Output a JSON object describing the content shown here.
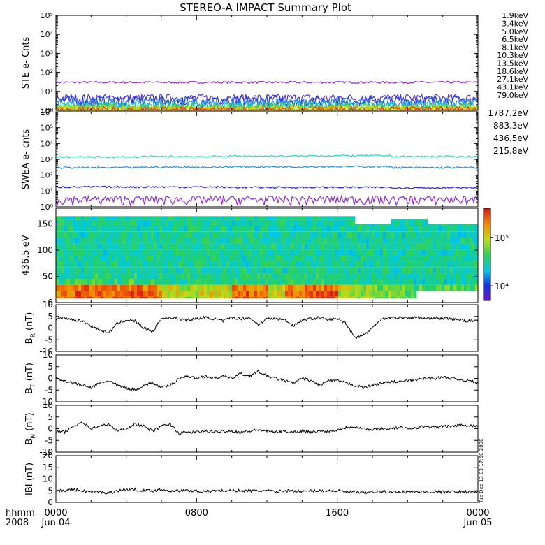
{
  "title": "STEREO-A IMPACT Summary Plot",
  "footer": {
    "left_top": "hhmm",
    "left_bottom": "2008"
  },
  "x_axis": {
    "ticks": [
      {
        "t": 0,
        "top": "0000",
        "bottom": "Jun 04"
      },
      {
        "t": 8,
        "top": "0800",
        "bottom": ""
      },
      {
        "t": 16,
        "top": "1600",
        "bottom": ""
      },
      {
        "t": 24,
        "top": "0000",
        "bottom": "Jun 05"
      }
    ],
    "range_hours": [
      0,
      24
    ]
  },
  "side_stamp": "Tue Dec 13 03:17:50 2008",
  "colors": {
    "ste": [
      "#8a2be2",
      "#5533dd",
      "#1f3fe0",
      "#1e90e6",
      "#16c8c8",
      "#22cc55",
      "#66dd22",
      "#bbdd11",
      "#eedd00",
      "#ee9900",
      "#dd3322"
    ],
    "swea": [
      "#8a2be2",
      "#2020dd",
      "#1e90e6",
      "#22ddbb"
    ]
  },
  "chart_data": [
    {
      "panel": "STE",
      "type": "line",
      "ylabel": "STE e- Cnts",
      "scale": "log",
      "ylim": [
        1,
        100000
      ],
      "tick_labels": [
        "10⁰",
        "10¹",
        "10²",
        "10³",
        "10⁴",
        "10⁵"
      ],
      "series": [
        {
          "name": "1.9keV",
          "values": [
            30,
            30,
            30,
            30,
            30,
            30
          ]
        },
        {
          "name": "3.4keV",
          "values": [
            4.5,
            4.5,
            4.5,
            4.5,
            4.5,
            4.5
          ]
        },
        {
          "name": "5.0keV",
          "values": [
            3.5,
            3.5,
            3.5,
            3.5,
            3.5,
            3.5
          ]
        },
        {
          "name": "6.5keV",
          "values": [
            2.5,
            2.5,
            2.5,
            2.5,
            2.5,
            2.5
          ]
        },
        {
          "name": "8.1keV",
          "values": [
            1.8,
            1.8,
            1.8,
            1.8,
            1.8,
            1.8
          ]
        },
        {
          "name": "10.3keV",
          "values": [
            1.5,
            1.5,
            1.5,
            1.5,
            1.5,
            1.5
          ]
        },
        {
          "name": "13.5keV",
          "values": [
            1.3,
            1.3,
            1.3,
            1.3,
            1.3,
            1.3
          ]
        },
        {
          "name": "18.6keV",
          "values": [
            1.2,
            1.2,
            1.2,
            1.2,
            1.2,
            1.2
          ]
        },
        {
          "name": "27.1keV",
          "values": [
            1.1,
            1.1,
            1.1,
            1.1,
            1.1,
            1.1
          ]
        },
        {
          "name": "43.1keV",
          "values": [
            1.05,
            1.05,
            1.05,
            1.05,
            1.05,
            1.05
          ]
        },
        {
          "name": "79.0keV",
          "values": [
            1.0,
            1.0,
            1.0,
            1.0,
            1.0,
            1.0
          ]
        }
      ]
    },
    {
      "panel": "SWEA",
      "type": "line",
      "ylabel": "SWEA e- cnts",
      "scale": "log",
      "ylim": [
        1,
        1000000
      ],
      "tick_labels": [
        "10⁰",
        "10¹",
        "10²",
        "10³",
        "10⁴",
        "10⁵",
        "10⁶"
      ],
      "series": [
        {
          "name": "1787.2eV",
          "values": [
            3,
            3,
            3,
            3,
            3,
            3
          ]
        },
        {
          "name": "883.3eV",
          "values": [
            18,
            18,
            17,
            17,
            16,
            16
          ]
        },
        {
          "name": "436.5eV",
          "values": [
            300,
            320,
            340,
            350,
            300,
            280
          ]
        },
        {
          "name": "215.8eV",
          "values": [
            1400,
            1500,
            1600,
            1700,
            1500,
            1300
          ]
        }
      ]
    },
    {
      "panel": "PAD",
      "type": "heatmap",
      "ylabel": "436.5 eV",
      "ylim": [
        0,
        180
      ],
      "y_ticks": [
        0,
        50,
        100,
        150
      ],
      "colorbar": {
        "range": [
          5000,
          400000
        ],
        "tick_labels": [
          "10⁴",
          "10⁵"
        ],
        "tick_values": [
          10000,
          100000
        ]
      },
      "notes_values": "pitch-angle spectrogram; high counts (red/orange) concentrated at low pitch angles",
      "low_angle_flux_by_hour": [
        0.85,
        0.9,
        0.88,
        0.86,
        0.9,
        0.85,
        0.6,
        0.55,
        0.62,
        0.6,
        0.9,
        0.88,
        0.6,
        0.85,
        0.9,
        0.88,
        0.6,
        0.55,
        0.5,
        0.45,
        0.4,
        0.4,
        0.4,
        0.4
      ]
    },
    {
      "panel": "BR",
      "type": "line",
      "ylabel": "B_R (nT)",
      "ylim": [
        -10,
        10
      ],
      "y_ticks": [
        -10,
        -5,
        0,
        5,
        10
      ],
      "x": [
        0,
        0.5,
        1,
        1.5,
        2,
        2.5,
        3,
        3.5,
        4,
        4.5,
        5,
        5.5,
        6,
        6.5,
        7,
        7.5,
        8,
        8.5,
        9,
        9.5,
        10,
        10.5,
        11,
        11.5,
        12,
        12.5,
        13,
        13.5,
        14,
        14.5,
        15,
        15.5,
        16,
        16.5,
        17,
        17.5,
        18,
        18.5,
        19,
        19.5,
        20,
        20.5,
        21,
        21.5,
        22,
        22.5,
        23,
        23.5,
        24
      ],
      "values": [
        4,
        4.5,
        3.5,
        3,
        1,
        -1,
        -2,
        2,
        3.5,
        3,
        0,
        -1.5,
        4,
        4.5,
        4,
        3.5,
        4,
        4.5,
        4,
        3,
        4.5,
        4,
        4.5,
        1.5,
        4,
        4,
        3.5,
        1,
        3.5,
        4,
        4.5,
        3.5,
        4,
        2,
        -4,
        -3,
        0,
        4,
        4.5,
        4.5,
        4.5,
        4.5,
        4,
        4.5,
        4,
        4,
        3.5,
        3,
        3.5
      ]
    },
    {
      "panel": "BT",
      "type": "line",
      "ylabel": "B_T (nT)",
      "ylim": [
        -10,
        10
      ],
      "y_ticks": [
        -10,
        -5,
        0,
        5,
        10
      ],
      "x": [
        0,
        0.5,
        1,
        1.5,
        2,
        2.5,
        3,
        3.5,
        4,
        4.5,
        5,
        5.5,
        6,
        6.5,
        7,
        7.5,
        8,
        8.5,
        9,
        9.5,
        10,
        10.5,
        11,
        11.5,
        12,
        12.5,
        13,
        13.5,
        14,
        14.5,
        15,
        15.5,
        16,
        16.5,
        17,
        17.5,
        18,
        18.5,
        19,
        19.5,
        20,
        20.5,
        21,
        21.5,
        22,
        22.5,
        23,
        23.5,
        24
      ],
      "values": [
        0,
        -1,
        -2,
        -3,
        -4,
        -2,
        -1,
        -3,
        -4,
        -5,
        -3,
        -2,
        -4,
        -3,
        0,
        1,
        0,
        1,
        0,
        1,
        0,
        2,
        1,
        3,
        1,
        0,
        -1,
        -2,
        0,
        -1,
        -3,
        -1,
        -1,
        -2,
        -3,
        -4,
        -3,
        -2,
        -1.5,
        -1.5,
        -1,
        -0.5,
        0,
        0,
        0.5,
        0,
        -0.5,
        -1,
        -2
      ]
    },
    {
      "panel": "BN",
      "type": "line",
      "ylabel": "B_N (nT)",
      "ylim": [
        -10,
        10
      ],
      "y_ticks": [
        -10,
        -5,
        0,
        5,
        10
      ],
      "x": [
        0,
        0.5,
        1,
        1.5,
        2,
        2.5,
        3,
        3.5,
        4,
        4.5,
        5,
        5.5,
        6,
        6.5,
        7,
        7.5,
        8,
        8.5,
        9,
        9.5,
        10,
        10.5,
        11,
        11.5,
        12,
        12.5,
        13,
        13.5,
        14,
        14.5,
        15,
        15.5,
        16,
        16.5,
        17,
        17.5,
        18,
        18.5,
        19,
        19.5,
        20,
        20.5,
        21,
        21.5,
        22,
        22.5,
        23,
        23.5,
        24
      ],
      "values": [
        -1,
        -1.5,
        1,
        3,
        0,
        1,
        2,
        -1,
        0,
        2,
        1,
        -1,
        1,
        2,
        -2,
        -1.5,
        -1.5,
        -1,
        -1.5,
        -1,
        -1,
        -1.5,
        -1,
        -0.5,
        -1,
        -1.5,
        -1,
        -1.5,
        -1,
        -1.5,
        -1,
        -1,
        -0.5,
        0.5,
        1,
        0,
        -0.5,
        0,
        0,
        0.5,
        0,
        0.5,
        1,
        0.5,
        1,
        1,
        1.5,
        1.5,
        1
      ]
    },
    {
      "panel": "BMAG",
      "type": "line",
      "ylabel": "IBI (nT)",
      "ylim": [
        0,
        20
      ],
      "y_ticks": [
        0,
        5,
        10,
        15,
        20
      ],
      "x": [
        0,
        0.5,
        1,
        1.5,
        2,
        2.5,
        3,
        3.5,
        4,
        4.5,
        5,
        5.5,
        6,
        6.5,
        7,
        7.5,
        8,
        8.5,
        9,
        9.5,
        10,
        10.5,
        11,
        11.5,
        12,
        12.5,
        13,
        13.5,
        14,
        14.5,
        15,
        15.5,
        16,
        16.5,
        17,
        17.5,
        18,
        18.5,
        19,
        19.5,
        20,
        20.5,
        21,
        21.5,
        22,
        22.5,
        23,
        23.5,
        24
      ],
      "values": [
        5,
        5,
        5.5,
        5,
        4.5,
        4.5,
        4,
        5,
        5.5,
        5.5,
        5,
        5,
        5.5,
        5,
        5,
        5,
        5,
        4.5,
        5,
        5,
        5,
        5,
        5,
        5,
        5,
        4.5,
        5,
        5,
        4.5,
        5,
        5,
        5,
        5,
        4.5,
        4.5,
        4,
        4.5,
        4.5,
        4.5,
        4.5,
        4.5,
        4.5,
        4.5,
        4.5,
        4.5,
        4.5,
        4.5,
        4.5,
        4.5
      ]
    }
  ]
}
